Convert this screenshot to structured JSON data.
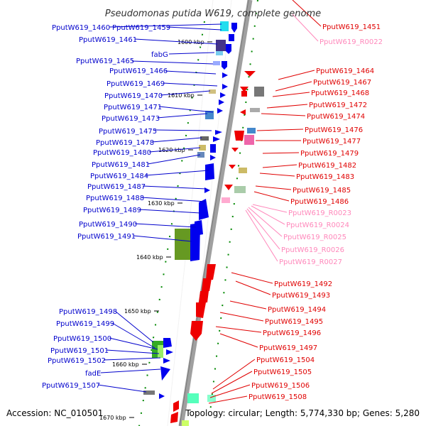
{
  "title": "Pseudomonas putida W619, complete genome",
  "footer": {
    "accession": "Accession: NC_010501",
    "summary": "Topology: circular; Length: 5,774,330 bp; Genes: 5,280"
  },
  "colors": {
    "left_label": "#0000cc",
    "right_label": "#e00000",
    "rna_label": "#ff88bb",
    "backbone": "#a0a0a0",
    "forward_feature": "#0000ee",
    "reverse_feature": "#ee0000",
    "tick": "#008800"
  },
  "ticks": [
    "1600 kbp",
    "1610 kbp",
    "1620 kbp",
    "1630 kbp",
    "1640 kbp",
    "1650 kbp",
    "1660 kbp",
    "1670 kbp"
  ],
  "left_labels": [
    "PputW619_1460",
    "PputW619_1459",
    "PputW619_1461",
    "fabG",
    "PputW619_1465",
    "PputW619_1466",
    "PputW619_1469",
    "PputW619_1470",
    "PputW619_1471",
    "PputW619_1473",
    "PputW619_1475",
    "PputW619_1478",
    "PputW619_1480",
    "PputW619_1481",
    "PputW619_1484",
    "PputW619_1487",
    "PputW619_1488",
    "PputW619_1489",
    "PputW619_1490",
    "PputW619_1491",
    "PputW619_1498",
    "PputW619_1499",
    "PputW619_1500",
    "PputW619_1501",
    "PputW619_1502",
    "fadE",
    "PputW619_1507"
  ],
  "right_labels": [
    "PputW619_1451",
    "PputW619_R0022",
    "PputW619_1464",
    "PputW619_1467",
    "PputW619_1468",
    "PputW619_1472",
    "PputW619_1474",
    "PputW619_1476",
    "PputW619_1477",
    "PputW619_1479",
    "PputW619_1482",
    "PputW619_1483",
    "PputW619_1485",
    "PputW619_1486",
    "PputW619_R0023",
    "PputW619_R0024",
    "PputW619_R0025",
    "PputW619_R0026",
    "PputW619_R0027",
    "PputW619_1492",
    "PputW619_1493",
    "PputW619_1494",
    "PputW619_1495",
    "PputW619_1496",
    "PputW619_1497",
    "PputW619_1504",
    "PputW619_1505",
    "PputW619_1506",
    "PputW619_1508"
  ]
}
